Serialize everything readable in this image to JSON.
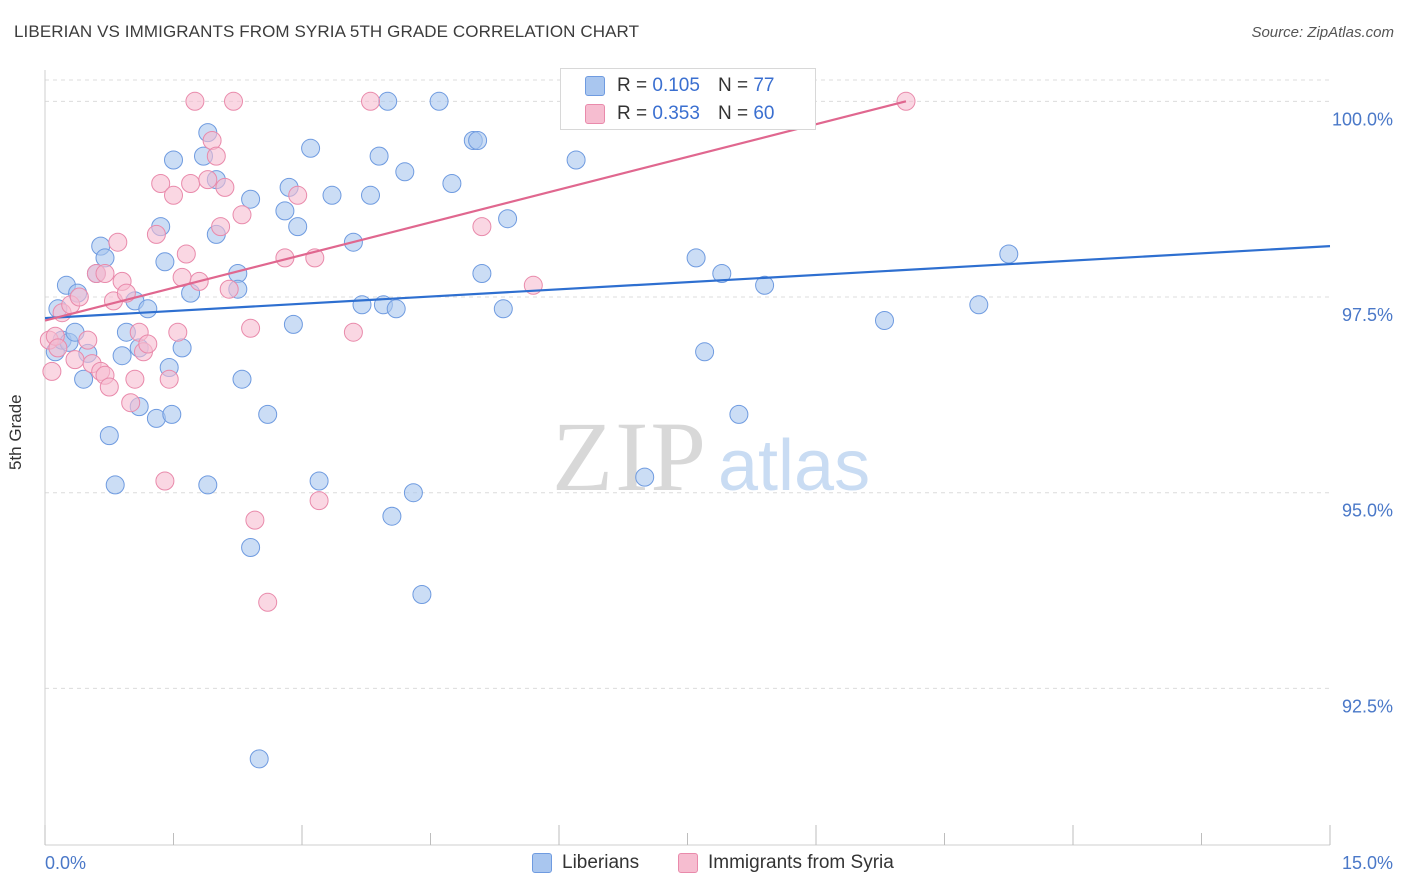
{
  "title": "LIBERIAN VS IMMIGRANTS FROM SYRIA 5TH GRADE CORRELATION CHART",
  "source": "Source: ZipAtlas.com",
  "watermark": {
    "zip": "ZIP",
    "atlas": "atlas"
  },
  "colors": {
    "blue_fill": "#a9c6ef",
    "blue_stroke": "#6f9be0",
    "blue_line": "#2e6fd0",
    "pink_fill": "#f6bdd0",
    "pink_stroke": "#e98aab",
    "pink_line": "#e0678f",
    "tick_label": "#4a78c8",
    "grid": "#dcdcdc"
  },
  "legend_top": {
    "rows": [
      {
        "r_label": "R =",
        "r_value": "0.105",
        "n_label": "N =",
        "n_value": "77"
      },
      {
        "r_label": "R =",
        "r_value": "0.353",
        "n_label": "N =",
        "n_value": "60"
      }
    ]
  },
  "legend_bottom": {
    "liberians": "Liberians",
    "syria": "Immigrants from Syria"
  },
  "chart_data": {
    "type": "scatter",
    "xlabel": "",
    "ylabel": "5th Grade",
    "xlim": [
      0,
      15
    ],
    "ylim": [
      90.5,
      100.4
    ],
    "x_tick_labels": [
      {
        "value": 0,
        "label": "0.0%"
      },
      {
        "value": 15,
        "label": "15.0%"
      }
    ],
    "y_tick_labels": [
      {
        "value": 100,
        "label": "100.0%"
      },
      {
        "value": 97.5,
        "label": "97.5%"
      },
      {
        "value": 95,
        "label": "95.0%"
      },
      {
        "value": 92.5,
        "label": "92.5%"
      }
    ],
    "grid": true,
    "series": [
      {
        "name": "Liberians",
        "trend": {
          "x0": 0,
          "y0": 97.23,
          "x1": 15,
          "y1": 98.15
        },
        "points": [
          [
            0.12,
            96.8
          ],
          [
            0.15,
            97.35
          ],
          [
            0.2,
            96.95
          ],
          [
            0.25,
            97.65
          ],
          [
            0.28,
            96.92
          ],
          [
            0.35,
            97.05
          ],
          [
            0.38,
            97.55
          ],
          [
            0.45,
            96.45
          ],
          [
            0.5,
            96.78
          ],
          [
            0.6,
            97.8
          ],
          [
            0.65,
            98.15
          ],
          [
            0.7,
            98.0
          ],
          [
            0.75,
            95.73
          ],
          [
            0.82,
            95.1
          ],
          [
            0.9,
            96.75
          ],
          [
            0.95,
            97.05
          ],
          [
            1.05,
            97.45
          ],
          [
            1.1,
            96.1
          ],
          [
            1.1,
            96.85
          ],
          [
            1.2,
            97.35
          ],
          [
            1.3,
            95.95
          ],
          [
            1.35,
            98.4
          ],
          [
            1.4,
            97.95
          ],
          [
            1.45,
            96.6
          ],
          [
            1.48,
            96.0
          ],
          [
            1.5,
            99.25
          ],
          [
            1.6,
            96.85
          ],
          [
            1.7,
            97.55
          ],
          [
            1.85,
            99.3
          ],
          [
            1.9,
            95.1
          ],
          [
            1.9,
            99.6
          ],
          [
            2.0,
            98.3
          ],
          [
            2.0,
            99.0
          ],
          [
            2.25,
            97.8
          ],
          [
            2.25,
            97.6
          ],
          [
            2.3,
            96.45
          ],
          [
            2.4,
            98.75
          ],
          [
            2.4,
            94.3
          ],
          [
            2.5,
            91.6
          ],
          [
            2.6,
            96.0
          ],
          [
            2.8,
            98.6
          ],
          [
            2.85,
            98.9
          ],
          [
            2.9,
            97.15
          ],
          [
            2.95,
            98.4
          ],
          [
            3.1,
            99.4
          ],
          [
            3.2,
            95.15
          ],
          [
            3.35,
            98.8
          ],
          [
            3.6,
            98.2
          ],
          [
            3.7,
            97.4
          ],
          [
            3.8,
            98.8
          ],
          [
            3.9,
            99.3
          ],
          [
            3.95,
            97.4
          ],
          [
            4.0,
            100.0
          ],
          [
            4.05,
            94.7
          ],
          [
            4.1,
            97.35
          ],
          [
            4.2,
            99.1
          ],
          [
            4.3,
            95.0
          ],
          [
            4.4,
            93.7
          ],
          [
            4.6,
            100.0
          ],
          [
            4.75,
            98.95
          ],
          [
            5.0,
            99.5
          ],
          [
            5.05,
            99.5
          ],
          [
            5.1,
            97.8
          ],
          [
            5.35,
            97.35
          ],
          [
            5.4,
            98.5
          ],
          [
            6.2,
            99.25
          ],
          [
            7.0,
            95.2
          ],
          [
            7.6,
            98.0
          ],
          [
            7.7,
            96.8
          ],
          [
            7.9,
            97.8
          ],
          [
            8.1,
            96.0
          ],
          [
            8.4,
            97.65
          ],
          [
            9.8,
            97.2
          ],
          [
            10.9,
            97.4
          ],
          [
            11.25,
            98.05
          ]
        ]
      },
      {
        "name": "Immigrants from Syria",
        "trend": {
          "x0": 0,
          "y0": 97.2,
          "x1": 10.05,
          "y1": 100.0
        },
        "points": [
          [
            0.05,
            96.95
          ],
          [
            0.08,
            96.55
          ],
          [
            0.12,
            97.0
          ],
          [
            0.15,
            96.85
          ],
          [
            0.2,
            97.3
          ],
          [
            0.3,
            97.4
          ],
          [
            0.35,
            96.7
          ],
          [
            0.4,
            97.5
          ],
          [
            0.5,
            96.95
          ],
          [
            0.55,
            96.65
          ],
          [
            0.6,
            97.8
          ],
          [
            0.65,
            96.55
          ],
          [
            0.7,
            97.8
          ],
          [
            0.7,
            96.5
          ],
          [
            0.75,
            96.35
          ],
          [
            0.8,
            97.45
          ],
          [
            0.85,
            98.2
          ],
          [
            0.9,
            97.7
          ],
          [
            0.95,
            97.55
          ],
          [
            1.0,
            96.15
          ],
          [
            1.05,
            96.45
          ],
          [
            1.1,
            97.05
          ],
          [
            1.15,
            96.8
          ],
          [
            1.2,
            96.9
          ],
          [
            1.3,
            98.3
          ],
          [
            1.35,
            98.95
          ],
          [
            1.4,
            95.15
          ],
          [
            1.45,
            96.45
          ],
          [
            1.5,
            98.8
          ],
          [
            1.55,
            97.05
          ],
          [
            1.6,
            97.75
          ],
          [
            1.65,
            98.05
          ],
          [
            1.7,
            98.95
          ],
          [
            1.75,
            100.0
          ],
          [
            1.8,
            97.7
          ],
          [
            1.9,
            99.0
          ],
          [
            1.95,
            99.5
          ],
          [
            2.0,
            99.3
          ],
          [
            2.05,
            98.4
          ],
          [
            2.1,
            98.9
          ],
          [
            2.15,
            97.6
          ],
          [
            2.2,
            100.0
          ],
          [
            2.3,
            98.55
          ],
          [
            2.4,
            97.1
          ],
          [
            2.45,
            94.65
          ],
          [
            2.6,
            93.6
          ],
          [
            2.8,
            98.0
          ],
          [
            2.95,
            98.8
          ],
          [
            3.15,
            98.0
          ],
          [
            3.2,
            94.9
          ],
          [
            3.6,
            97.05
          ],
          [
            3.8,
            100.0
          ],
          [
            5.1,
            98.4
          ],
          [
            5.7,
            97.65
          ],
          [
            6.35,
            100.0
          ],
          [
            8.4,
            100.0
          ],
          [
            10.05,
            100.0
          ]
        ]
      }
    ]
  }
}
